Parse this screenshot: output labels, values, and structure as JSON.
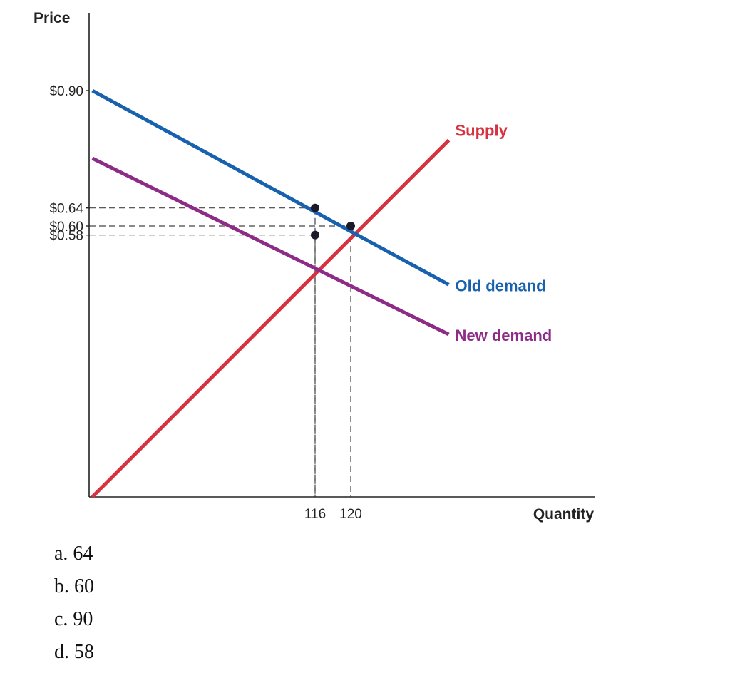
{
  "chart_data": {
    "type": "line",
    "xlabel": "Quantity",
    "ylabel": "Price",
    "y_ticks": [
      {
        "value": 0.9,
        "label": "$0.90"
      },
      {
        "value": 0.64,
        "label": "$0.64"
      },
      {
        "value": 0.6,
        "label": "$0.60"
      },
      {
        "value": 0.58,
        "label": "$0.58"
      }
    ],
    "x_ticks": [
      {
        "value": 116,
        "label": "116"
      },
      {
        "value": 120,
        "label": "120"
      }
    ],
    "series": [
      {
        "name": "Supply",
        "color": "#d6323f",
        "points": [
          [
            91,
            0
          ],
          [
            131,
            0.79
          ]
        ]
      },
      {
        "name": "Old demand",
        "color": "#1761ae",
        "points": [
          [
            91,
            0.9
          ],
          [
            131,
            0.47
          ]
        ]
      },
      {
        "name": "New demand",
        "color": "#8e2b87",
        "points": [
          [
            91,
            0.75
          ],
          [
            131,
            0.36
          ]
        ]
      }
    ],
    "equilibrium_points": [
      {
        "x": 116,
        "y": 0.64
      },
      {
        "x": 120,
        "y": 0.6
      },
      {
        "x": 116,
        "y": 0.58
      }
    ],
    "guide_lines": [
      {
        "x": 116,
        "y": 0.64
      },
      {
        "x": 120,
        "y": 0.6
      },
      {
        "x": 116,
        "y": 0.58
      }
    ]
  },
  "choices": [
    "a. 64",
    "b. 60",
    "c. 90",
    "d. 58"
  ]
}
